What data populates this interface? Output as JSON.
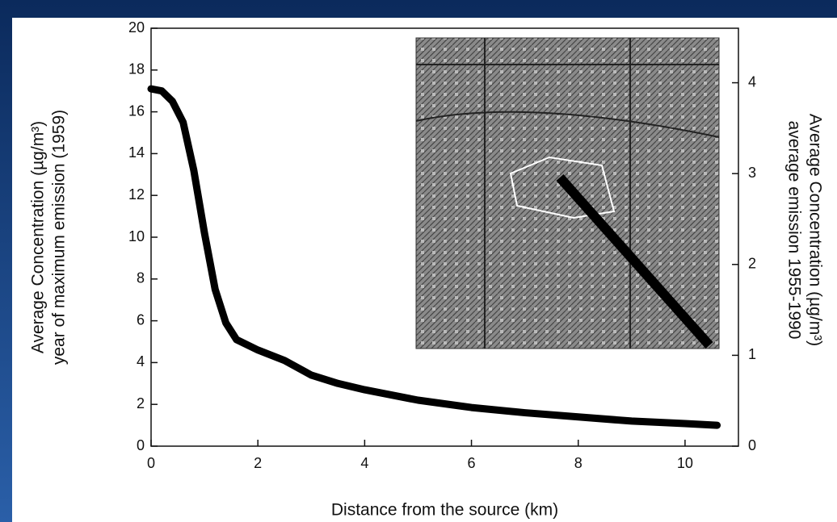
{
  "chart_data": {
    "type": "line",
    "x_label": "Distance from the source (km)",
    "y_label": [
      "Average Concentration (µg/m³)",
      "year of maximum emission (1959)"
    ],
    "y2_label": [
      "Average Concentration (µg/m³)",
      "average emission 1955-1990"
    ],
    "x": [
      0,
      0.2,
      0.4,
      0.6,
      0.8,
      1.0,
      1.2,
      1.4,
      1.6,
      2,
      2.5,
      3,
      3.5,
      4,
      5,
      6,
      7,
      8,
      9,
      10,
      10.6
    ],
    "values": [
      17.1,
      17.0,
      16.5,
      15.5,
      13.2,
      10.2,
      7.5,
      5.9,
      5.1,
      4.6,
      4.1,
      3.4,
      3.0,
      2.7,
      2.2,
      1.85,
      1.6,
      1.4,
      1.2,
      1.08,
      1.0
    ],
    "color": "#000000",
    "xlim": [
      0,
      11
    ],
    "xticks": [
      0,
      2,
      4,
      6,
      8,
      10
    ],
    "ylim": [
      0,
      20
    ],
    "yticks": [
      0,
      2,
      4,
      6,
      8,
      10,
      12,
      14,
      16,
      18,
      20
    ],
    "y2lim": [
      0,
      4.6
    ],
    "y2ticks": [
      0,
      1,
      2,
      3,
      4
    ]
  }
}
